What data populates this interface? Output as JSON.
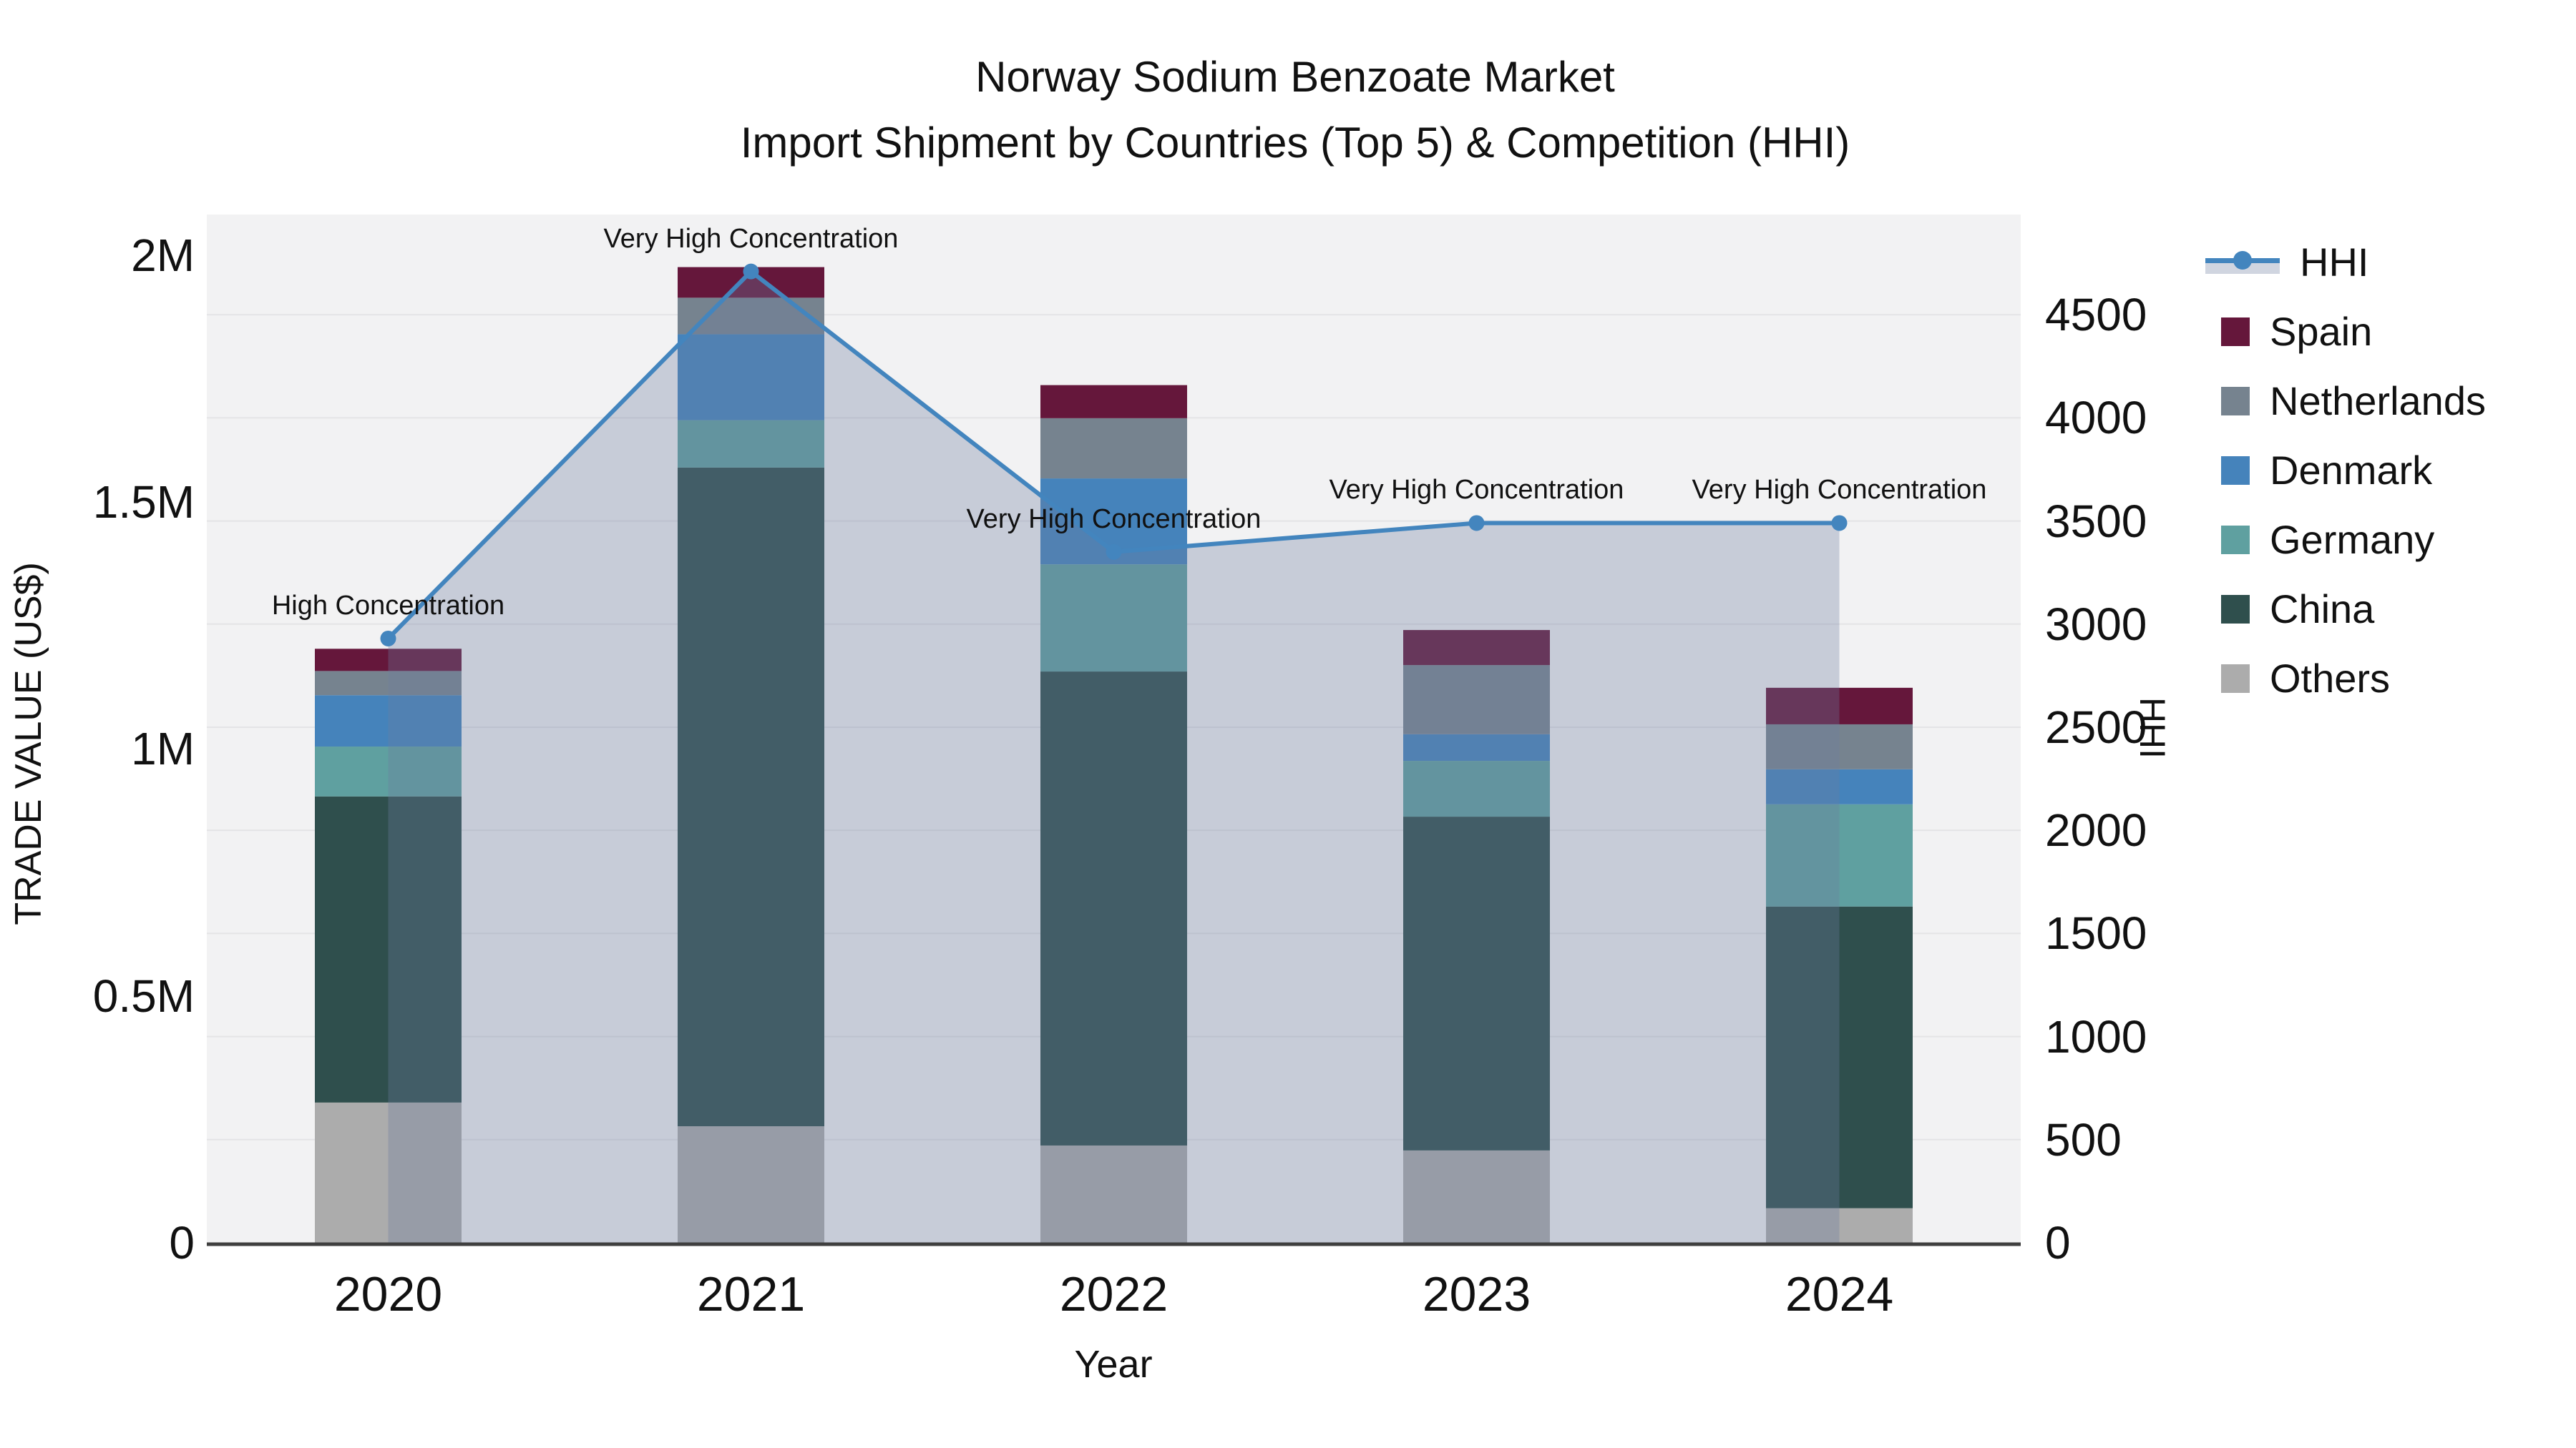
{
  "title": {
    "line1": "Norway Sodium Benzoate Market",
    "line2": "Import Shipment by Countries (Top 5) & Competition (HHI)"
  },
  "axes": {
    "x_title": "Year",
    "y_left_title": "TRADE VALUE (US$)",
    "y_right_title": "HHI",
    "y_left_ticks": [
      {
        "label": "0",
        "value": 0
      },
      {
        "label": "0.5M",
        "value": 500000
      },
      {
        "label": "1M",
        "value": 1000000
      },
      {
        "label": "1.5M",
        "value": 1500000
      },
      {
        "label": "2M",
        "value": 2000000
      }
    ],
    "y_right_ticks": [
      {
        "label": "0",
        "value": 0
      },
      {
        "label": "500",
        "value": 500
      },
      {
        "label": "1000",
        "value": 1000
      },
      {
        "label": "1500",
        "value": 1500
      },
      {
        "label": "2000",
        "value": 2000
      },
      {
        "label": "2500",
        "value": 2500
      },
      {
        "label": "3000",
        "value": 3000
      },
      {
        "label": "3500",
        "value": 3500
      },
      {
        "label": "4000",
        "value": 4000
      },
      {
        "label": "4500",
        "value": 4500
      }
    ]
  },
  "colors": {
    "plot_bg": "#F2F2F3",
    "gridline": "#E4E4E6",
    "axis_line": "#3F3F3F",
    "hhi_line": "#4385BE",
    "area_fill": "rgba(108,125,160,0.32)",
    "text": "#111111"
  },
  "legend": {
    "items": [
      {
        "label": "HHI",
        "type": "line",
        "color": "#4385BE"
      },
      {
        "label": "Spain",
        "type": "box",
        "color": "#65173B"
      },
      {
        "label": "Netherlands",
        "type": "box",
        "color": "#76838F"
      },
      {
        "label": "Denmark",
        "type": "box",
        "color": "#4583BB"
      },
      {
        "label": "Germany",
        "type": "box",
        "color": "#5FA0A0"
      },
      {
        "label": "China",
        "type": "box",
        "color": "#2F4F4D"
      },
      {
        "label": "Others",
        "type": "box",
        "color": "#ACACAC"
      }
    ]
  },
  "annotations": [
    {
      "category": "2020",
      "text": "High Concentration"
    },
    {
      "category": "2021",
      "text": "Very High Concentration"
    },
    {
      "category": "2022",
      "text": "Very High Concentration"
    },
    {
      "category": "2023",
      "text": "Very High Concentration"
    },
    {
      "category": "2024",
      "text": "Very High Concentration"
    }
  ],
  "chart_data": {
    "type": "combo",
    "subtype": "stacked-bar-with-line",
    "categories": [
      "2020",
      "2021",
      "2022",
      "2023",
      "2024"
    ],
    "bar_stack_order_bottom_to_top": [
      "Others",
      "China",
      "Germany",
      "Denmark",
      "Netherlands",
      "Spain"
    ],
    "bar_series": [
      {
        "name": "Others",
        "color": "#ACACAC",
        "axis": "left",
        "values": [
          284000,
          236000,
          197000,
          187000,
          70000
        ]
      },
      {
        "name": "China",
        "color": "#2F4F4D",
        "axis": "left",
        "values": [
          620000,
          1334000,
          960000,
          676000,
          611000
        ]
      },
      {
        "name": "Germany",
        "color": "#5FA0A0",
        "axis": "left",
        "values": [
          101000,
          96000,
          217000,
          113000,
          207000
        ]
      },
      {
        "name": "Denmark",
        "color": "#4583BB",
        "axis": "left",
        "values": [
          104000,
          174000,
          174000,
          54000,
          71000
        ]
      },
      {
        "name": "Netherlands",
        "color": "#76838F",
        "axis": "left",
        "values": [
          49000,
          74000,
          122000,
          140000,
          91000
        ]
      },
      {
        "name": "Spain",
        "color": "#65173B",
        "axis": "left",
        "values": [
          45000,
          62000,
          67000,
          71000,
          74000
        ]
      }
    ],
    "bar_totals": [
      1203000,
      1976000,
      1737000,
      1241000,
      1124000
    ],
    "line_series": {
      "name": "HHI",
      "axis": "right",
      "color": "#4385BE",
      "area_fill": "rgba(108,125,160,0.32)",
      "values": [
        2930,
        4710,
        3350,
        3490,
        3490
      ]
    },
    "title": "Norway Sodium Benzoate Market — Import Shipment by Countries (Top 5) & Competition (HHI)",
    "xlabel": "Year",
    "ylabel_left": "TRADE VALUE (US$)",
    "ylabel_right": "HHI",
    "ylim_left": [
      0,
      2082500
    ],
    "ylim_right": [
      0,
      4986
    ],
    "grid": "horizontal, every 500 HHI",
    "legend_position": "right"
  }
}
